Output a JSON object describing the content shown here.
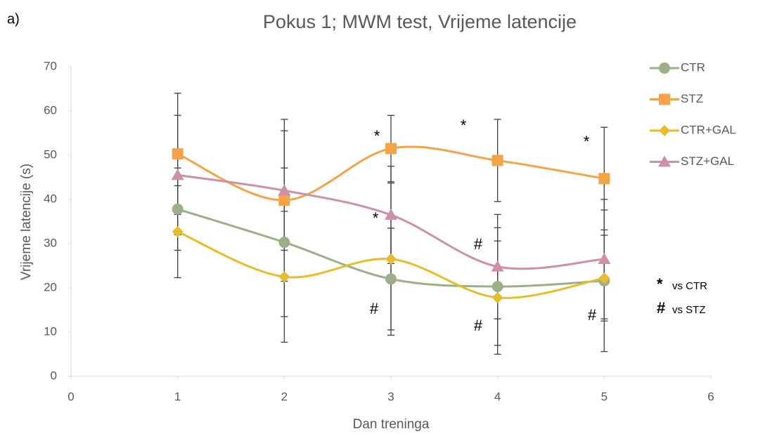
{
  "chart_data": {
    "type": "line",
    "panel_label": "a)",
    "title": "Pokus 1; MWM test, Vrijeme latencije",
    "x_label": "Dan treninga",
    "y_label": "Vrijeme latencije (s)",
    "x": [
      1,
      2,
      3,
      4,
      5
    ],
    "xlim": [
      0,
      6
    ],
    "xticks": [
      0,
      1,
      2,
      3,
      4,
      5,
      6
    ],
    "ylim": [
      0,
      70
    ],
    "yticks": [
      0,
      10,
      20,
      30,
      40,
      50,
      60,
      70
    ],
    "smooth": true,
    "series": [
      {
        "name": "CTR",
        "color": "#9caf88",
        "marker": "circle",
        "values": [
          37.8,
          30.3,
          22,
          20.3,
          21.6
        ],
        "errors": [
          9.3,
          16.8,
          11.5,
          13.3,
          16
        ]
      },
      {
        "name": "STZ",
        "color": "#f4a347",
        "marker": "square",
        "values": [
          50.3,
          39.8,
          51.5,
          48.8,
          44.7
        ],
        "errors": [
          13.7,
          18.3,
          7.5,
          9.3,
          11.6
        ]
      },
      {
        "name": "CTR+GAL",
        "color": "#e8bc2c",
        "marker": "diamond",
        "values": [
          32.7,
          22.5,
          26.5,
          17.8,
          22.2
        ],
        "errors": [
          10.4,
          14.8,
          17.2,
          12.8,
          9.7
        ]
      },
      {
        "name": "STZ+GAL",
        "color": "#cf8fa9",
        "marker": "triangle",
        "values": [
          45.5,
          42,
          36.5,
          24.8,
          26.5
        ],
        "errors": [
          13.5,
          13.5,
          11,
          11.8,
          13.5
        ]
      }
    ],
    "annotations": [
      "*",
      "*",
      "*",
      "*",
      "#",
      "#",
      "#",
      "#"
    ],
    "key": [
      {
        "symbol": "*",
        "text": "vs CTR"
      },
      {
        "symbol": "#",
        "text": "vs STZ"
      }
    ]
  }
}
